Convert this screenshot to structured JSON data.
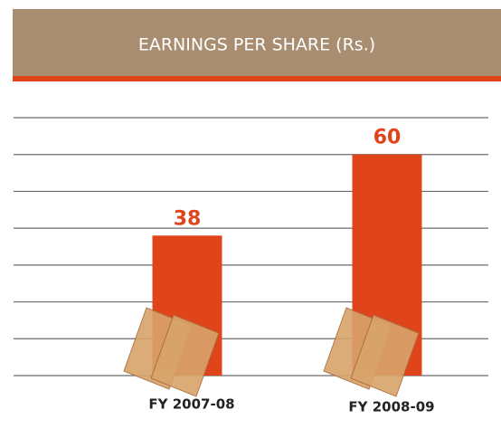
{
  "chart_data": {
    "type": "bar",
    "title": "EARNINGS PER SHARE (Rs.)",
    "categories": [
      "FY 2007-08",
      "FY 2008-09"
    ],
    "values": [
      38,
      60
    ],
    "color": "#e0441b",
    "ylim": [
      0,
      70
    ],
    "yticks": [
      0,
      10,
      20,
      30,
      40,
      50,
      60,
      70
    ],
    "grid": true
  }
}
